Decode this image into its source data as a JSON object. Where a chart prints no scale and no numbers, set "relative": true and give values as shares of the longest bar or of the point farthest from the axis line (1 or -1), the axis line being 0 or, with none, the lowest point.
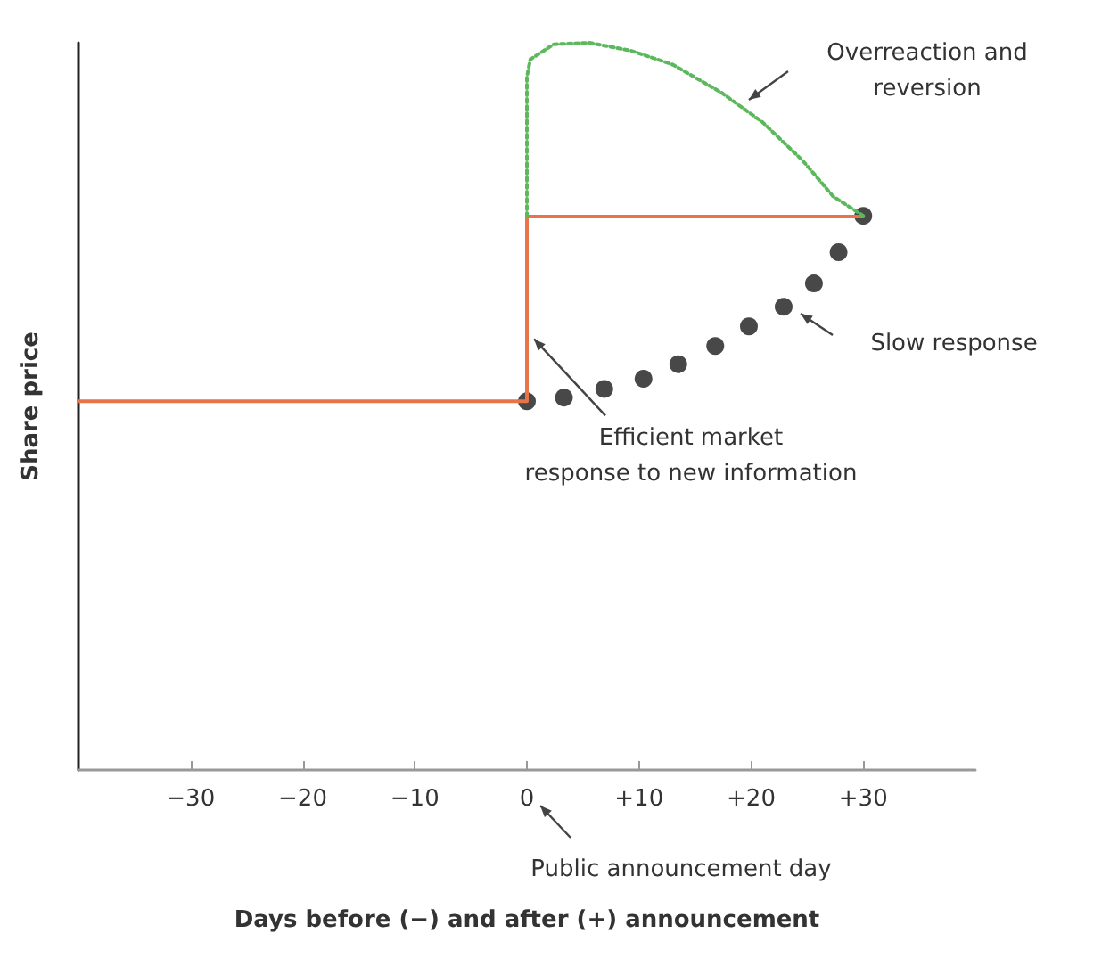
{
  "chart_data": {
    "type": "line",
    "relative": true,
    "xlabel": "Days before (−) and after (+) announcement",
    "ylabel": "Share price",
    "xlim": [
      -40,
      40
    ],
    "xticks": [
      {
        "value": -30,
        "label": "−30"
      },
      {
        "value": -20,
        "label": "−20"
      },
      {
        "value": -10,
        "label": "−10"
      },
      0,
      {
        "value": 10,
        "label": "+10"
      },
      {
        "value": 20,
        "label": "+20"
      },
      {
        "value": 30,
        "label": "+30"
      }
    ],
    "tick_labels": "x",
    "grid": false,
    "series": [
      {
        "type": "line",
        "color": "#e8744a",
        "line_style": "solid",
        "x": [
          -40,
          0,
          0,
          30
        ],
        "values": [
          0.507,
          0.507,
          0.761,
          0.761
        ]
      },
      {
        "type": "line",
        "color": "#5cb85c",
        "line_style": "dotted",
        "x": [
          0,
          0,
          0.3,
          2.4,
          5.6,
          9.3,
          13,
          17.3,
          21,
          24.6,
          27.3,
          30
        ],
        "values": [
          0.761,
          0.953,
          0.977,
          0.998,
          1,
          0.989,
          0.97,
          0.932,
          0.891,
          0.838,
          0.789,
          0.762
        ]
      },
      {
        "type": "scatter",
        "color": "#1a1a1a",
        "marker": "circle",
        "x": [
          0,
          3.3,
          6.9,
          10.4,
          13.5,
          16.8,
          19.8,
          22.9,
          25.6,
          27.8,
          30
        ],
        "values": [
          0.507,
          0.512,
          0.524,
          0.538,
          0.558,
          0.583,
          0.61,
          0.637,
          0.669,
          0.712,
          0.762
        ]
      }
    ],
    "annotations": [
      "Overreaction and\nreversion",
      "Slow response",
      {
        "text": "Efficient market\nresponse to new information",
        "x": 0,
        "y": 0.6
      },
      "Public announcement day"
    ]
  }
}
